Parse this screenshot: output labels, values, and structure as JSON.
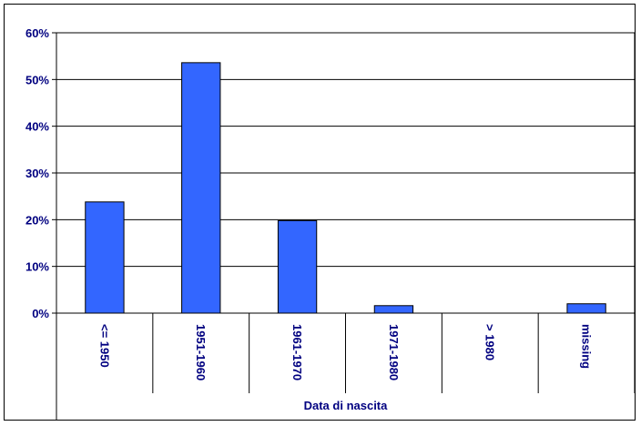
{
  "chart_data": {
    "type": "bar",
    "categories": [
      "<= 1950",
      "1951-1960",
      "1961-1970",
      "1971-1980",
      "> 1980",
      "missing"
    ],
    "values": [
      23.8,
      53.6,
      19.8,
      1.6,
      0,
      2.0
    ],
    "xlabel": "Data di nascita",
    "ylabel": "",
    "ylim": [
      0,
      60
    ],
    "yticks": [
      "0%",
      "10%",
      "20%",
      "30%",
      "40%",
      "50%",
      "60%"
    ],
    "grid": true,
    "legend": "none",
    "bar_color": "#3366ff",
    "text_color": "#000080"
  }
}
